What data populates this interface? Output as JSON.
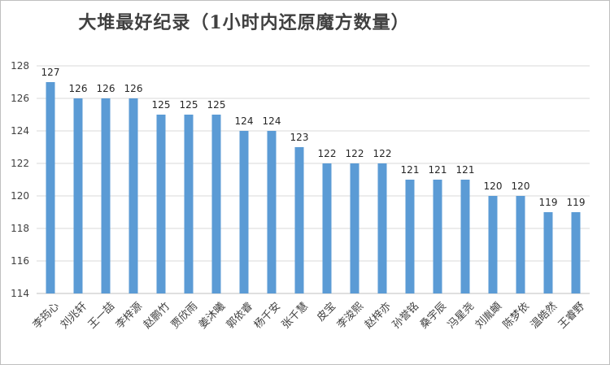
{
  "chart_data": {
    "type": "bar",
    "title": "大堆最好纪录（1小时内还原魔方数量）",
    "xlabel": "",
    "ylabel": "",
    "ylim": [
      114,
      128
    ],
    "ytick_step": 2,
    "grid": true,
    "legend": "none",
    "bar_color": "#5b9bd5",
    "categories": [
      "李筠心",
      "刘兆轩",
      "王一喆",
      "李梓源",
      "赵鹏竹",
      "贾欣雨",
      "姜沐曦",
      "郭依睿",
      "杨千安",
      "张千慧",
      "皮宝",
      "李浚熙",
      "赵梓亦",
      "孙誉铭",
      "桑宇辰",
      "冯星尧",
      "刘胤頔",
      "陈梦依",
      "温皓然",
      "王睿野"
    ],
    "values": [
      127,
      126,
      126,
      126,
      125,
      125,
      125,
      124,
      124,
      123,
      122,
      122,
      122,
      121,
      121,
      121,
      120,
      120,
      119,
      119
    ]
  }
}
